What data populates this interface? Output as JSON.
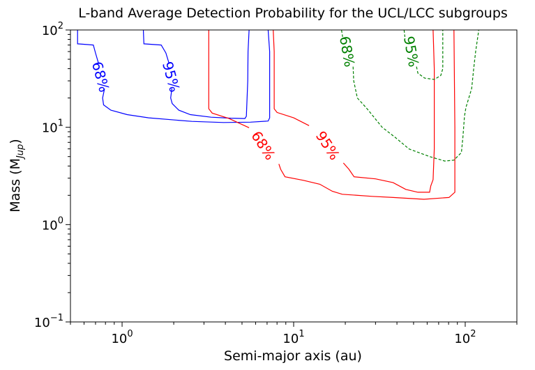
{
  "chart_data": {
    "type": "line",
    "title": "L-band Average Detection Probability for the UCL/LCC subgroups",
    "xlabel": "Semi-major axis (au)",
    "ylabel_main": "Mass (M",
    "ylabel_sub": "Jup",
    "ylabel_close": ")",
    "xscale": "log",
    "yscale": "log",
    "xlim": [
      0.5,
      200
    ],
    "ylim": [
      0.1,
      100
    ],
    "xticks": [
      {
        "value": 1,
        "base": "10",
        "exp": "0"
      },
      {
        "value": 10,
        "base": "10",
        "exp": "1"
      },
      {
        "value": 100,
        "base": "10",
        "exp": "2"
      }
    ],
    "yticks": [
      {
        "value": 0.1,
        "base": "10",
        "exp": "−1"
      },
      {
        "value": 1,
        "base": "10",
        "exp": "0"
      },
      {
        "value": 10,
        "base": "10",
        "exp": "1"
      },
      {
        "value": 100,
        "base": "10",
        "exp": "2"
      }
    ],
    "grid": false,
    "series": [
      {
        "label": "68%",
        "color": "#0000ff",
        "dash": false,
        "segments": [
          [
            [
              0.55,
              100
            ],
            [
              0.55,
              72
            ],
            [
              0.68,
              70
            ],
            [
              0.7,
              58
            ],
            [
              0.73,
              45
            ]
          ],
          [
            [
              0.79,
              25
            ],
            [
              0.77,
              20
            ],
            [
              0.78,
              17
            ],
            [
              0.86,
              15
            ],
            [
              1.07,
              13.5
            ],
            [
              1.43,
              12.5
            ],
            [
              2.55,
              11.5
            ],
            [
              3.9,
              11.2
            ],
            [
              5.6,
              11.3
            ],
            [
              7.1,
              11.6
            ],
            [
              7.25,
              12.5
            ],
            [
              7.25,
              60
            ],
            [
              7.1,
              100
            ]
          ]
        ],
        "label_pos": [
          0.75,
          33
        ],
        "label_rot": 75
      },
      {
        "label": "95%",
        "color": "#0000ff",
        "dash": false,
        "segments": [
          [
            [
              1.33,
              100
            ],
            [
              1.34,
              72
            ],
            [
              1.69,
              70
            ],
            [
              1.8,
              58
            ],
            [
              1.88,
              45
            ]
          ],
          [
            [
              1.95,
              25
            ],
            [
              1.92,
              20
            ],
            [
              1.96,
              17.5
            ],
            [
              2.14,
              15
            ],
            [
              2.5,
              13.5
            ],
            [
              3.3,
              12.7
            ],
            [
              4.3,
              12.4
            ],
            [
              5.2,
              12.3
            ],
            [
              5.3,
              13
            ],
            [
              5.4,
              30
            ],
            [
              5.42,
              60
            ],
            [
              5.5,
              100
            ]
          ]
        ],
        "label_pos": [
          1.93,
          33
        ],
        "label_rot": 75
      },
      {
        "label": "68%",
        "color": "#ff0000",
        "dash": false,
        "segments": [
          [
            [
              3.2,
              100
            ],
            [
              3.2,
              60
            ],
            [
              3.2,
              15.5
            ],
            [
              3.35,
              14
            ],
            [
              4.2,
              12.3
            ],
            [
              5.5,
              9.9
            ]
          ],
          [
            [
              8.2,
              4.2
            ],
            [
              8.4,
              3.7
            ],
            [
              8.9,
              3.1
            ],
            [
              11.4,
              2.85
            ],
            [
              14.2,
              2.6
            ],
            [
              16.8,
              2.2
            ],
            [
              19.2,
              2.05
            ],
            [
              28.7,
              1.95
            ],
            [
              38,
              1.9
            ],
            [
              57.5,
              1.82
            ],
            [
              80.4,
              1.9
            ],
            [
              87,
              2.15
            ],
            [
              87,
              10
            ],
            [
              86,
              100
            ]
          ]
        ],
        "label_pos": [
          6.65,
          6.5
        ],
        "label_rot": 57
      },
      {
        "label": "95%",
        "color": "#ff0000",
        "dash": false,
        "segments": [
          [
            [
              7.6,
              100
            ],
            [
              7.7,
              60
            ],
            [
              7.7,
              15.5
            ],
            [
              8,
              14.2
            ],
            [
              10,
              12.5
            ],
            [
              12.3,
              10.4
            ]
          ],
          [
            [
              19.5,
              4.3
            ],
            [
              21,
              3.7
            ],
            [
              22.5,
              3.1
            ],
            [
              30,
              2.95
            ],
            [
              38,
              2.7
            ],
            [
              45,
              2.3
            ],
            [
              53,
              2.15
            ],
            [
              62,
              2.15
            ],
            [
              63,
              2.5
            ],
            [
              65,
              2.9
            ],
            [
              66,
              6
            ],
            [
              66,
              40
            ],
            [
              65,
              100
            ]
          ]
        ],
        "label_pos": [
          15.8,
          6.5
        ],
        "label_rot": 57
      },
      {
        "label": "68%",
        "color": "#008000",
        "dash": true,
        "segments": [
          [
            [
              19,
              100
            ],
            [
              19.3,
              85
            ]
          ],
          [
            [
              22.2,
              42
            ],
            [
              22.4,
              30
            ],
            [
              23.5,
              20
            ],
            [
              26.8,
              15.5
            ],
            [
              32.8,
              10
            ],
            [
              39,
              7.9
            ],
            [
              47,
              6
            ],
            [
              62,
              5
            ],
            [
              76,
              4.5
            ],
            [
              86,
              4.6
            ],
            [
              95,
              5.5
            ],
            [
              97,
              8
            ],
            [
              99,
              13
            ],
            [
              101,
              16
            ],
            [
              109,
              25
            ],
            [
              112,
              40
            ],
            [
              115,
              60
            ],
            [
              120,
              100
            ]
          ]
        ],
        "label_pos": [
          20.5,
          60
        ],
        "label_rot": 80
      },
      {
        "label": "95%",
        "color": "#008000",
        "dash": true,
        "segments": [
          [
            [
              44,
              100
            ],
            [
              44.5,
              85
            ]
          ],
          [
            [
              52,
              42
            ],
            [
              53,
              36
            ],
            [
              58,
              32
            ],
            [
              66,
              31
            ],
            [
              72,
              34
            ],
            [
              74,
              40
            ],
            [
              74,
              100
            ]
          ]
        ],
        "label_pos": [
          48.5,
          60
        ],
        "label_rot": 80
      }
    ]
  }
}
